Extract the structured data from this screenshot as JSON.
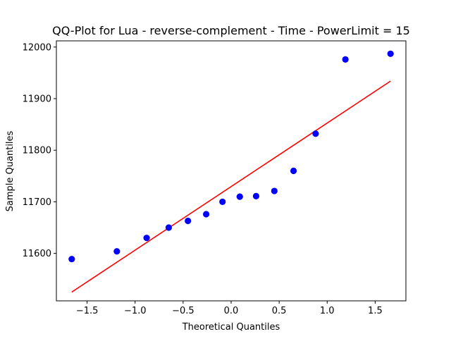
{
  "chart_data": {
    "type": "scatter",
    "title": "QQ-Plot for Lua - reverse-complement - Time - PowerLimit = 15",
    "xlabel": "Theoretical Quantiles",
    "ylabel": "Sample Quantiles",
    "xlim": [
      -1.82,
      1.82
    ],
    "ylim": [
      11508,
      12012
    ],
    "x_ticks": [
      -1.5,
      -1.0,
      -0.5,
      0.0,
      0.5,
      1.0,
      1.5
    ],
    "x_tick_labels": [
      "−1.5",
      "−1.0",
      "−0.5",
      "0.0",
      "0.5",
      "1.0",
      "1.5"
    ],
    "y_ticks": [
      11600,
      11700,
      11800,
      11900,
      12000
    ],
    "y_tick_labels": [
      "11600",
      "11700",
      "11800",
      "11900",
      "12000"
    ],
    "grid": false,
    "legend": "none",
    "series": [
      {
        "marker_color": "#0000ff",
        "x": [
          -1.66,
          -1.19,
          -0.88,
          -0.65,
          -0.45,
          -0.26,
          -0.09,
          0.09,
          0.26,
          0.45,
          0.65,
          0.88,
          1.19,
          1.66
        ],
        "y": [
          11589,
          11604,
          11630,
          11650,
          11663,
          11676,
          11700,
          11710,
          11711,
          11721,
          11760,
          11832,
          11976,
          11987
        ]
      }
    ],
    "fit_line": {
      "color": "#ff0000",
      "x": [
        -1.66,
        1.66
      ],
      "y": [
        11525,
        11934
      ]
    }
  }
}
